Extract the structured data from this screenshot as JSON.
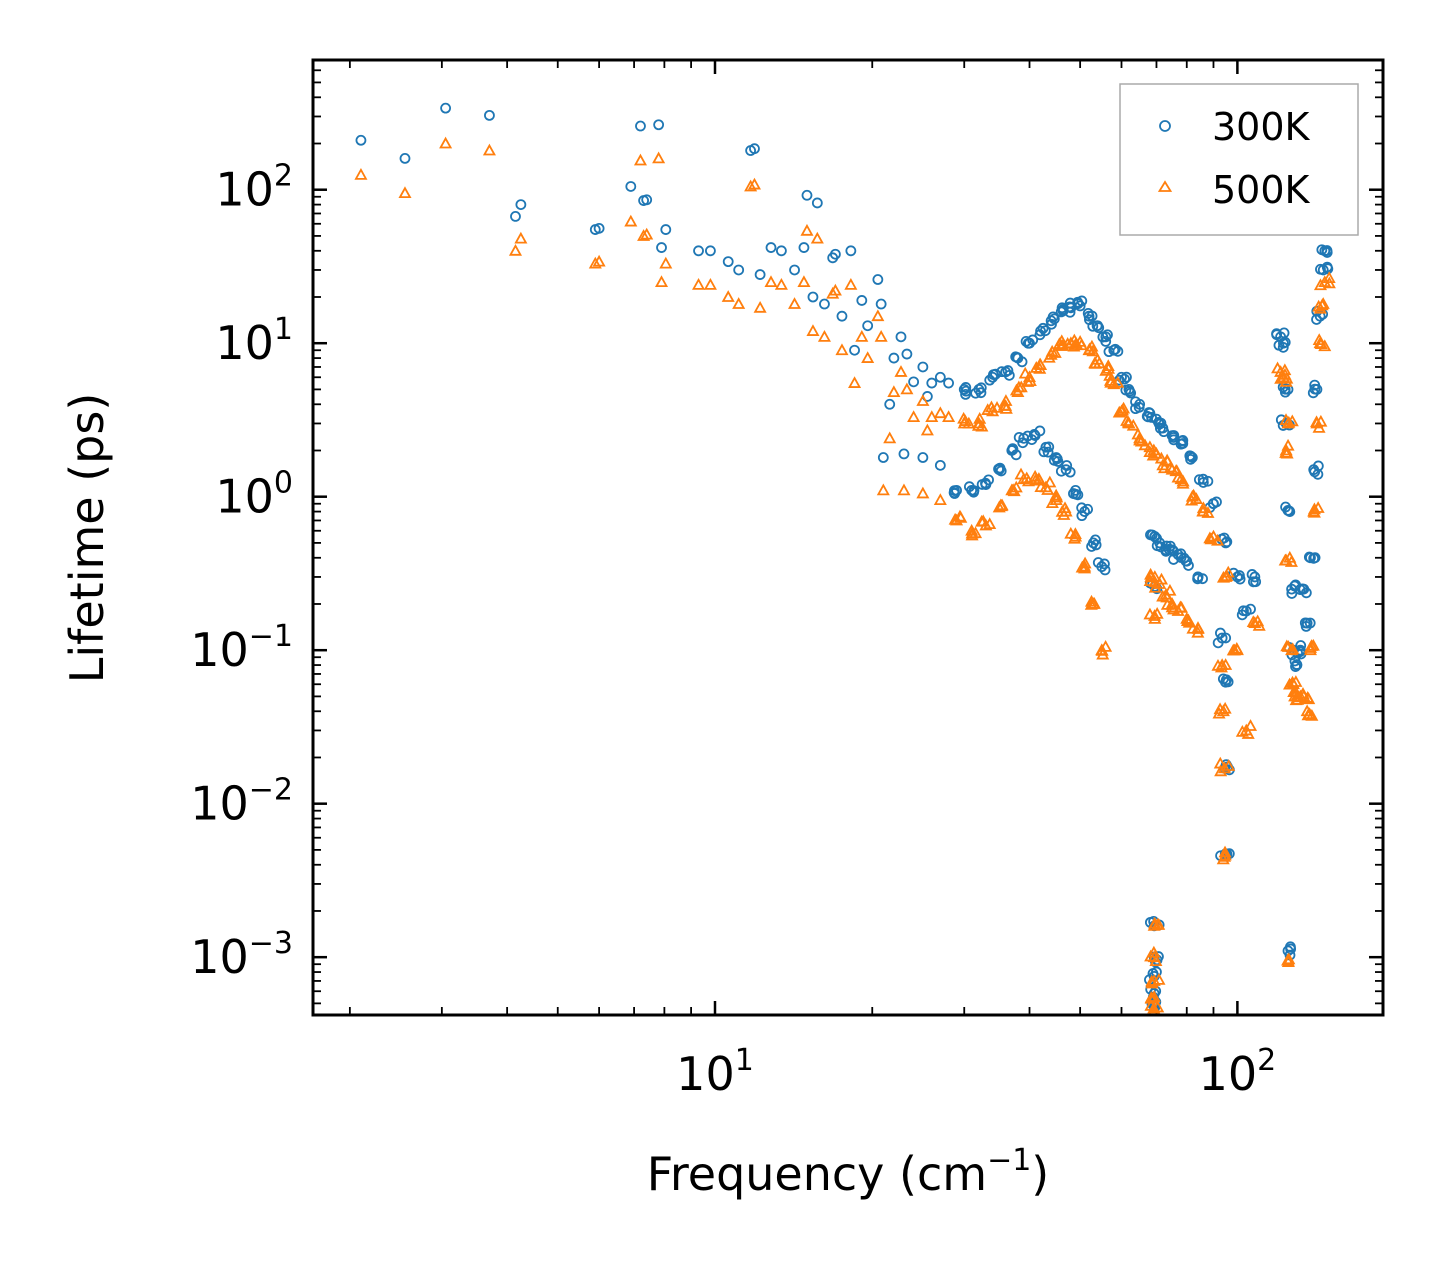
{
  "chart_data": {
    "type": "scatter",
    "title": "",
    "xlabel": "Frequency (cm",
    "xlabel_sup": "−1",
    "xlabel_tail": ")",
    "ylabel": "Lifetime (ps)",
    "xscale": "log",
    "yscale": "log",
    "xlim": [
      1.7,
      190
    ],
    "ylim": [
      0.00042,
      700
    ],
    "legend_position": "top-right",
    "x_ticks": [
      {
        "value": 10,
        "base": "10",
        "exp": "1"
      },
      {
        "value": 100,
        "base": "10",
        "exp": "2"
      }
    ],
    "y_ticks": [
      {
        "value": 100,
        "base": "10",
        "exp": "2"
      },
      {
        "value": 10,
        "base": "10",
        "exp": "1"
      },
      {
        "value": 1,
        "base": "10",
        "exp": "0"
      },
      {
        "value": 0.1,
        "base": "10",
        "exp": "−1"
      },
      {
        "value": 0.01,
        "base": "10",
        "exp": "−2"
      },
      {
        "value": 0.001,
        "base": "10",
        "exp": "−3"
      }
    ],
    "series": [
      {
        "name": "300K",
        "marker": "circle",
        "color": "#1f77b4",
        "points": [
          [
            2.1,
            210
          ],
          [
            2.55,
            160
          ],
          [
            3.05,
            340
          ],
          [
            3.7,
            305
          ],
          [
            4.15,
            67
          ],
          [
            4.25,
            80
          ],
          [
            5.9,
            55
          ],
          [
            6.0,
            56
          ],
          [
            6.9,
            105
          ],
          [
            7.2,
            260
          ],
          [
            7.3,
            85
          ],
          [
            7.4,
            86
          ],
          [
            7.8,
            265
          ],
          [
            7.9,
            42
          ],
          [
            8.05,
            55
          ],
          [
            9.3,
            40
          ],
          [
            9.8,
            40
          ],
          [
            10.6,
            34
          ],
          [
            11.1,
            30
          ],
          [
            11.7,
            180
          ],
          [
            11.9,
            185
          ],
          [
            12.2,
            28
          ],
          [
            12.8,
            42
          ],
          [
            13.4,
            40
          ],
          [
            14.2,
            30
          ],
          [
            14.8,
            42
          ],
          [
            15.0,
            92
          ],
          [
            15.4,
            20
          ],
          [
            15.7,
            82
          ],
          [
            16.2,
            18
          ],
          [
            16.8,
            36
          ],
          [
            17.0,
            38
          ],
          [
            17.5,
            15
          ],
          [
            18.2,
            40
          ],
          [
            18.5,
            9
          ],
          [
            19.1,
            19
          ],
          [
            19.6,
            13
          ],
          [
            20.5,
            26
          ],
          [
            20.8,
            18
          ],
          [
            21.6,
            4
          ],
          [
            22.0,
            8
          ],
          [
            22.7,
            11
          ],
          [
            23.3,
            8.5
          ],
          [
            24.0,
            5.6
          ],
          [
            25.0,
            7
          ],
          [
            25.5,
            4.5
          ],
          [
            26.0,
            5.5
          ],
          [
            27.0,
            6
          ],
          [
            28.0,
            5.5
          ],
          [
            30.0,
            5
          ],
          [
            32.0,
            5
          ],
          [
            34.0,
            6
          ],
          [
            36.0,
            6.5
          ],
          [
            38.0,
            8
          ],
          [
            40.0,
            10
          ],
          [
            42.0,
            12
          ],
          [
            44.0,
            14
          ],
          [
            46.0,
            16
          ],
          [
            48.0,
            17
          ],
          [
            50.0,
            17.5
          ],
          [
            52.0,
            15
          ],
          [
            54.0,
            13
          ],
          [
            56.0,
            11
          ],
          [
            58.0,
            9
          ],
          [
            60.0,
            6
          ],
          [
            62.0,
            5
          ],
          [
            65.0,
            4
          ],
          [
            68.0,
            3.5
          ],
          [
            70.0,
            3.2
          ],
          [
            72.0,
            2.8
          ],
          [
            75.0,
            2.5
          ],
          [
            78.0,
            2.2
          ],
          [
            82.0,
            1.8
          ],
          [
            86.0,
            1.3
          ],
          [
            90.0,
            0.9
          ],
          [
            95.0,
            0.5
          ],
          [
            100.0,
            0.3
          ],
          [
            104.0,
            0.18
          ],
          [
            108.0,
            0.3
          ],
          [
            21.0,
            1.8
          ],
          [
            23.0,
            1.9
          ],
          [
            25.0,
            1.8
          ],
          [
            27.0,
            1.6
          ],
          [
            29.0,
            1.1
          ],
          [
            31.0,
            1.1
          ],
          [
            33.0,
            1.2
          ],
          [
            35.0,
            1.5
          ],
          [
            37.0,
            2.0
          ],
          [
            39.0,
            2.4
          ],
          [
            41.0,
            2.5
          ],
          [
            43.0,
            2.1
          ],
          [
            45.0,
            1.8
          ],
          [
            47.0,
            1.5
          ],
          [
            49.0,
            1.1
          ],
          [
            51.0,
            0.8
          ],
          [
            53.0,
            0.5
          ],
          [
            55.0,
            0.35
          ],
          [
            69.5,
            0.55
          ],
          [
            71.0,
            0.5
          ],
          [
            73.0,
            0.45
          ],
          [
            75.0,
            0.45
          ],
          [
            77.0,
            0.42
          ],
          [
            80.0,
            0.38
          ],
          [
            84.0,
            0.3
          ],
          [
            69.5,
            0.26
          ],
          [
            93.5,
            0.12
          ],
          [
            94.0,
            0.065
          ],
          [
            94.5,
            0.017
          ],
          [
            94.8,
            0.0047
          ],
          [
            69.3,
            0.0016
          ],
          [
            69.3,
            0.001
          ],
          [
            69.3,
            0.00075
          ],
          [
            69.3,
            0.00058
          ],
          [
            69.3,
            0.00048
          ],
          [
            121.0,
            11
          ],
          [
            122.5,
            10
          ],
          [
            124.0,
            3
          ],
          [
            125.0,
            5
          ],
          [
            126.0,
            0.8
          ],
          [
            127.0,
            0.25
          ],
          [
            128.0,
            0.1
          ],
          [
            130.0,
            0.08
          ],
          [
            132.0,
            0.1
          ],
          [
            134.0,
            0.25
          ],
          [
            136.0,
            0.15
          ],
          [
            138.0,
            0.4
          ],
          [
            140.0,
            1.5
          ],
          [
            142.0,
            5
          ],
          [
            144.0,
            15
          ],
          [
            146.0,
            30
          ],
          [
            147.0,
            40
          ],
          [
            125.0,
            0.0011
          ]
        ]
      },
      {
        "name": "500K",
        "marker": "triangle",
        "color": "#ff7f0e",
        "points": [
          [
            2.1,
            125
          ],
          [
            2.55,
            95
          ],
          [
            3.05,
            200
          ],
          [
            3.7,
            180
          ],
          [
            4.15,
            40
          ],
          [
            4.25,
            48
          ],
          [
            5.9,
            33
          ],
          [
            6.0,
            34
          ],
          [
            6.9,
            62
          ],
          [
            7.2,
            155
          ],
          [
            7.3,
            50
          ],
          [
            7.4,
            51
          ],
          [
            7.8,
            160
          ],
          [
            7.9,
            25
          ],
          [
            8.05,
            33
          ],
          [
            9.3,
            24
          ],
          [
            9.8,
            24
          ],
          [
            10.6,
            20
          ],
          [
            11.1,
            18
          ],
          [
            11.7,
            105
          ],
          [
            11.9,
            108
          ],
          [
            12.2,
            17
          ],
          [
            12.8,
            25
          ],
          [
            13.4,
            24
          ],
          [
            14.2,
            18
          ],
          [
            14.8,
            25
          ],
          [
            15.0,
            54
          ],
          [
            15.4,
            12
          ],
          [
            15.7,
            48
          ],
          [
            16.2,
            11
          ],
          [
            16.8,
            21
          ],
          [
            17.0,
            22
          ],
          [
            17.5,
            9
          ],
          [
            18.2,
            24
          ],
          [
            18.5,
            5.5
          ],
          [
            19.1,
            11
          ],
          [
            19.6,
            8
          ],
          [
            20.5,
            15
          ],
          [
            20.8,
            11
          ],
          [
            21.6,
            2.4
          ],
          [
            22.0,
            4.8
          ],
          [
            22.7,
            6.5
          ],
          [
            23.3,
            5
          ],
          [
            24.0,
            3.3
          ],
          [
            25.0,
            4.2
          ],
          [
            25.5,
            2.7
          ],
          [
            26.0,
            3.3
          ],
          [
            27.0,
            3.5
          ],
          [
            28.0,
            3.3
          ],
          [
            30.0,
            3
          ],
          [
            32.0,
            3
          ],
          [
            34.0,
            3.6
          ],
          [
            36.0,
            3.9
          ],
          [
            38.0,
            4.8
          ],
          [
            40.0,
            6
          ],
          [
            42.0,
            7.2
          ],
          [
            44.0,
            8.4
          ],
          [
            46.0,
            9.6
          ],
          [
            48.0,
            10
          ],
          [
            50.0,
            10.2
          ],
          [
            52.0,
            9
          ],
          [
            54.0,
            7.8
          ],
          [
            56.0,
            6.6
          ],
          [
            58.0,
            5.4
          ],
          [
            60.0,
            3.6
          ],
          [
            62.0,
            3
          ],
          [
            65.0,
            2.4
          ],
          [
            68.0,
            2.1
          ],
          [
            70.0,
            1.9
          ],
          [
            72.0,
            1.6
          ],
          [
            75.0,
            1.5
          ],
          [
            78.0,
            1.3
          ],
          [
            82.0,
            1.0
          ],
          [
            86.0,
            0.8
          ],
          [
            90.0,
            0.55
          ],
          [
            95.0,
            0.3
          ],
          [
            100.0,
            0.1
          ],
          [
            104.0,
            0.03
          ],
          [
            108.0,
            0.15
          ],
          [
            21.0,
            1.1
          ],
          [
            23.0,
            1.1
          ],
          [
            25.0,
            1.05
          ],
          [
            27.0,
            0.95
          ],
          [
            29.0,
            0.7
          ],
          [
            31.0,
            0.6
          ],
          [
            33.0,
            0.65
          ],
          [
            35.0,
            0.85
          ],
          [
            37.0,
            1.1
          ],
          [
            39.0,
            1.3
          ],
          [
            41.0,
            1.35
          ],
          [
            43.0,
            1.15
          ],
          [
            45.0,
            0.95
          ],
          [
            47.0,
            0.8
          ],
          [
            49.0,
            0.55
          ],
          [
            51.0,
            0.35
          ],
          [
            53.0,
            0.2
          ],
          [
            55.0,
            0.1
          ],
          [
            69.5,
            0.3
          ],
          [
            71.0,
            0.27
          ],
          [
            73.0,
            0.23
          ],
          [
            75.0,
            0.2
          ],
          [
            77.0,
            0.18
          ],
          [
            80.0,
            0.16
          ],
          [
            84.0,
            0.13
          ],
          [
            69.5,
            0.16
          ],
          [
            93.5,
            0.08
          ],
          [
            94.0,
            0.04
          ],
          [
            94.5,
            0.017
          ],
          [
            94.8,
            0.0046
          ],
          [
            69.3,
            0.0016
          ],
          [
            69.3,
            0.001
          ],
          [
            69.3,
            0.0007
          ],
          [
            69.3,
            0.00055
          ],
          [
            69.3,
            0.00045
          ],
          [
            121.0,
            6.5
          ],
          [
            122.5,
            6
          ],
          [
            124.0,
            2
          ],
          [
            125.0,
            3
          ],
          [
            126.0,
            0.4
          ],
          [
            127.0,
            0.1
          ],
          [
            128.0,
            0.06
          ],
          [
            130.0,
            0.05
          ],
          [
            132.0,
            0.05
          ],
          [
            134.0,
            0.05
          ],
          [
            136.0,
            0.04
          ],
          [
            138.0,
            0.1
          ],
          [
            140.0,
            0.8
          ],
          [
            142.0,
            3
          ],
          [
            144.0,
            10
          ],
          [
            146.0,
            18
          ],
          [
            147.0,
            25
          ],
          [
            125.0,
            0.00095
          ]
        ]
      }
    ]
  }
}
